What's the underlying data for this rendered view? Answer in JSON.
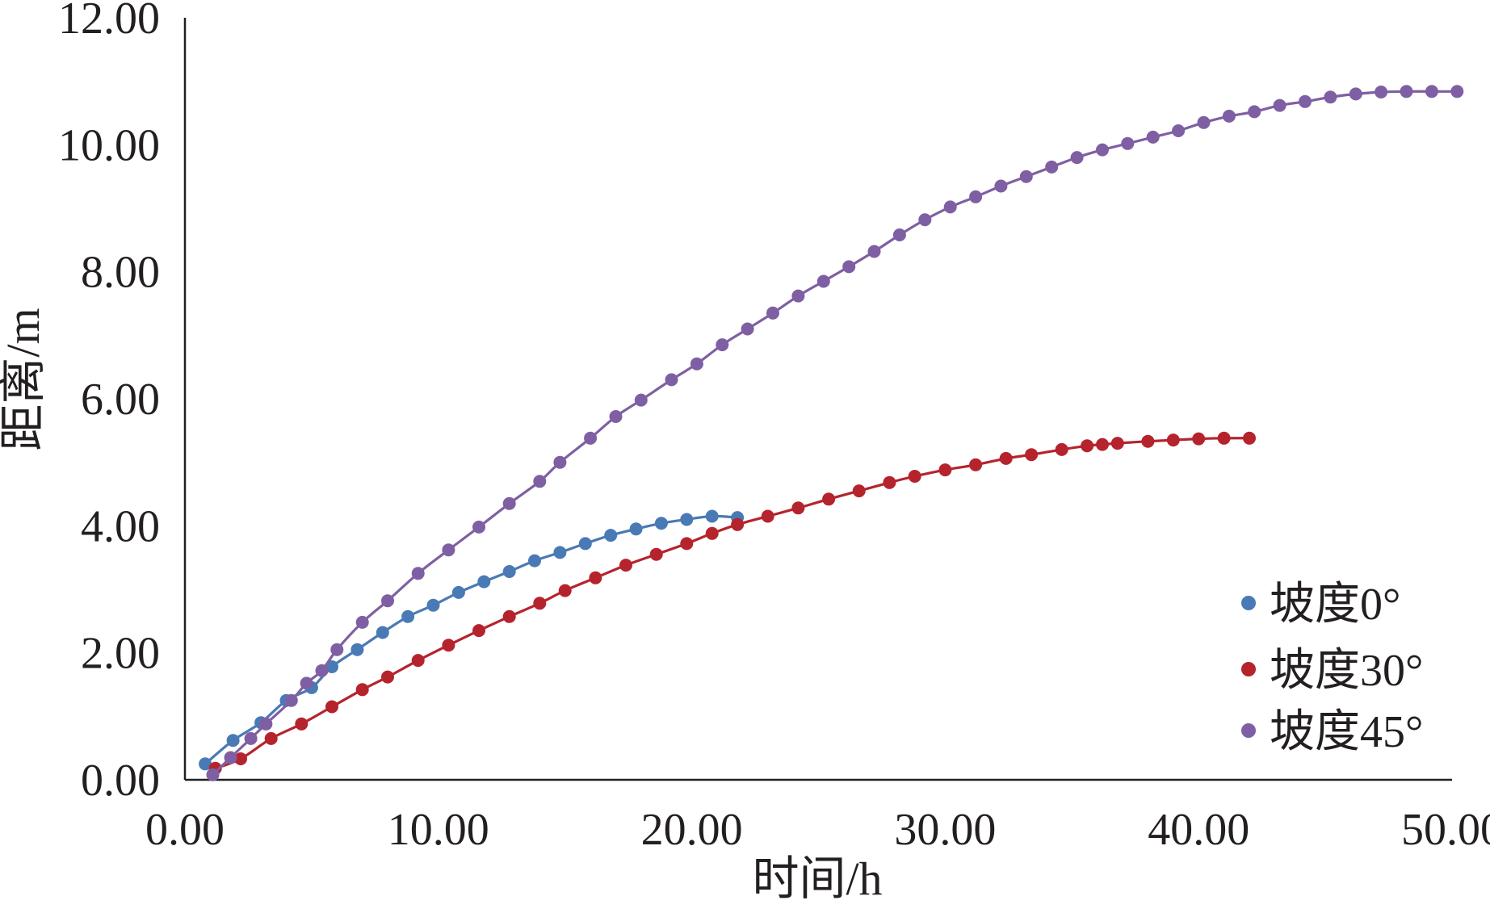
{
  "chart_data": {
    "type": "scatter",
    "xlabel": "时间/h",
    "ylabel": "距离/m",
    "xlim": [
      0,
      50
    ],
    "ylim": [
      0,
      12
    ],
    "x_ticks": [
      "0.00",
      "10.00",
      "20.00",
      "30.00",
      "40.00",
      "50.00"
    ],
    "y_ticks": [
      "0.00",
      "2.00",
      "4.00",
      "6.00",
      "8.00",
      "10.00",
      "12.00"
    ],
    "grid": false,
    "legend_position": "bottom-right",
    "series": [
      {
        "name": "坡度0°",
        "color": "#4a7ab5",
        "x": [
          0.8,
          1.9,
          3.0,
          4.0,
          5.0,
          5.8,
          6.8,
          7.8,
          8.8,
          9.8,
          10.8,
          11.8,
          12.8,
          13.8,
          14.8,
          15.8,
          16.8,
          17.8,
          18.8,
          19.8,
          20.8,
          21.8
        ],
        "y": [
          0.25,
          0.62,
          0.9,
          1.25,
          1.45,
          1.78,
          2.05,
          2.32,
          2.57,
          2.75,
          2.95,
          3.12,
          3.28,
          3.45,
          3.58,
          3.72,
          3.85,
          3.95,
          4.04,
          4.1,
          4.15,
          4.13
        ]
      },
      {
        "name": "坡度30°",
        "color": "#b5242d",
        "x": [
          1.2,
          2.2,
          3.4,
          4.6,
          5.8,
          7.0,
          8.0,
          9.2,
          10.4,
          11.6,
          12.8,
          14.0,
          15.0,
          16.2,
          17.4,
          18.6,
          19.8,
          20.8,
          21.8,
          23.0,
          24.2,
          25.4,
          26.6,
          27.8,
          28.8,
          30.0,
          31.2,
          32.4,
          33.4,
          34.6,
          35.6,
          36.2,
          36.8,
          38.0,
          39.0,
          40.0,
          41.0,
          42.0
        ],
        "y": [
          0.18,
          0.33,
          0.65,
          0.88,
          1.15,
          1.42,
          1.62,
          1.88,
          2.12,
          2.35,
          2.57,
          2.78,
          2.98,
          3.18,
          3.38,
          3.55,
          3.72,
          3.88,
          4.02,
          4.15,
          4.28,
          4.42,
          4.55,
          4.68,
          4.78,
          4.88,
          4.96,
          5.06,
          5.12,
          5.2,
          5.26,
          5.28,
          5.3,
          5.33,
          5.35,
          5.37,
          5.38,
          5.38
        ]
      },
      {
        "name": "坡度45°",
        "color": "#7f5fa3",
        "x": [
          1.1,
          1.8,
          2.6,
          3.2,
          4.2,
          4.8,
          5.4,
          6.0,
          7.0,
          8.0,
          9.2,
          10.4,
          11.6,
          12.8,
          14.0,
          14.8,
          16.0,
          17.0,
          18.0,
          19.2,
          20.2,
          21.2,
          22.2,
          23.2,
          24.2,
          25.2,
          26.2,
          27.2,
          28.2,
          29.2,
          30.2,
          31.2,
          32.2,
          33.2,
          34.2,
          35.2,
          36.2,
          37.2,
          38.2,
          39.2,
          40.2,
          41.2,
          42.2,
          43.2,
          44.2,
          45.2,
          46.2,
          47.2,
          48.2,
          49.2,
          50.2
        ],
        "y": [
          0.08,
          0.35,
          0.65,
          0.88,
          1.25,
          1.52,
          1.72,
          2.05,
          2.48,
          2.82,
          3.25,
          3.62,
          3.98,
          4.35,
          4.7,
          5.0,
          5.38,
          5.72,
          5.98,
          6.3,
          6.55,
          6.85,
          7.1,
          7.35,
          7.62,
          7.85,
          8.08,
          8.32,
          8.58,
          8.82,
          9.02,
          9.18,
          9.35,
          9.5,
          9.65,
          9.8,
          9.92,
          10.02,
          10.12,
          10.22,
          10.35,
          10.45,
          10.52,
          10.62,
          10.68,
          10.75,
          10.8,
          10.83,
          10.84,
          10.84,
          10.84
        ]
      }
    ]
  }
}
